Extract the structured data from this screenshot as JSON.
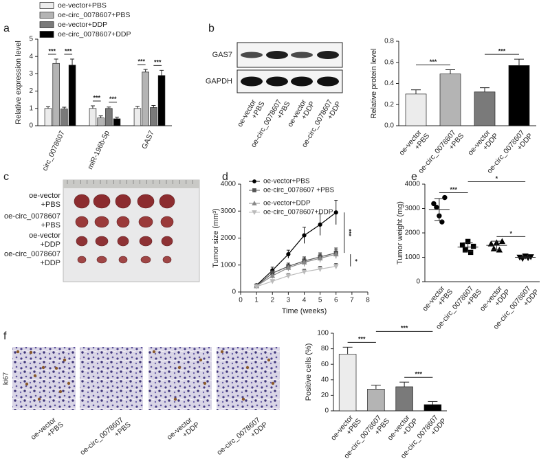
{
  "panels": [
    "a",
    "b",
    "c",
    "d",
    "e",
    "f"
  ],
  "blot": {
    "rows": [
      "GAS7",
      "GAPDH"
    ],
    "lanes": [
      [
        "oe-vector",
        "+PBS"
      ],
      [
        "oe-circ_0078607",
        "+PBS"
      ],
      [
        "oe-vector",
        "+DDP"
      ],
      [
        "oe-circ_0078607",
        "+DDP"
      ]
    ]
  },
  "photo": {
    "rows": [
      [
        "oe-vector",
        "+PBS"
      ],
      [
        "oe-circ_0078607",
        "+PBS"
      ],
      [
        "oe-vector",
        "+DDP"
      ],
      [
        "oe-circ_0078607",
        "+DDP"
      ]
    ]
  },
  "ihc": {
    "stain": "ki67",
    "columns": [
      [
        "oe-vector",
        "+PBS"
      ],
      [
        "oe-circ_0078607",
        "+PBS"
      ],
      [
        "oe-vector",
        "+DDP"
      ],
      [
        "oe-circ_0078607",
        "+DDP"
      ]
    ]
  },
  "chart_data": [
    {
      "type": "grouped_bar",
      "ylabel": "Relative expression level",
      "categories": [
        "circ_0078607",
        "miR-196b-5p",
        "GAS7"
      ],
      "series": [
        {
          "name": "oe-vector+PBS",
          "color": "#ececec",
          "values": [
            1.0,
            1.0,
            1.0
          ],
          "errors": [
            0.1,
            0.15,
            0.12
          ]
        },
        {
          "name": "oe-circ_0078607+PBS",
          "color": "#b4b4b4",
          "values": [
            3.6,
            0.45,
            3.1
          ],
          "errors": [
            0.25,
            0.12,
            0.15
          ]
        },
        {
          "name": "oe-vector+DDP",
          "color": "#7a7a7a",
          "values": [
            0.97,
            1.0,
            1.05
          ],
          "errors": [
            0.1,
            0.08,
            0.12
          ]
        },
        {
          "name": "oe-circ_0078607+DDP",
          "color": "#000000",
          "values": [
            3.5,
            0.4,
            2.9
          ],
          "errors": [
            0.35,
            0.1,
            0.3
          ]
        }
      ],
      "ylim": [
        0,
        5
      ],
      "yticks": [
        0,
        1,
        2,
        3,
        4,
        5
      ],
      "significance": [
        {
          "label": "***",
          "group": 0,
          "between": [
            0,
            1
          ]
        },
        {
          "label": "***",
          "group": 0,
          "between": [
            2,
            3
          ]
        },
        {
          "label": "***",
          "group": 1,
          "between": [
            0,
            1
          ]
        },
        {
          "label": "***",
          "group": 1,
          "between": [
            2,
            3
          ]
        },
        {
          "label": "***",
          "group": 2,
          "between": [
            0,
            1
          ]
        },
        {
          "label": "***",
          "group": 2,
          "between": [
            2,
            3
          ]
        }
      ]
    },
    {
      "type": "bar",
      "ylabel": "Relative protein level",
      "categories": [
        [
          "oe-vector",
          "+PBS"
        ],
        [
          "oe-circ_0078607",
          "+PBS"
        ],
        [
          "oe-vector",
          "+DDP"
        ],
        [
          "oe-circ_0078607",
          "+DDP"
        ]
      ],
      "values": [
        0.3,
        0.49,
        0.32,
        0.57
      ],
      "errors": [
        0.04,
        0.04,
        0.04,
        0.06
      ],
      "colors": [
        "#ececec",
        "#b4b4b4",
        "#7a7a7a",
        "#000000"
      ],
      "ylim": [
        0,
        0.8
      ],
      "yticks": [
        {
          "value": 0,
          "label": "0.0"
        },
        0.2,
        0.4,
        0.6,
        0.8
      ],
      "significance": [
        {
          "label": "***",
          "between": [
            0,
            1
          ]
        },
        {
          "label": "***",
          "between": [
            2,
            3
          ]
        }
      ]
    },
    {
      "type": "line",
      "ylabel": "Tumor size (mm³)",
      "xlabel": "Time (weeks)",
      "x": [
        1,
        2,
        3,
        4,
        5,
        6
      ],
      "series": [
        {
          "name": "oe-vector+PBS",
          "color": "#000000",
          "marker": "circle",
          "values": [
            250,
            800,
            1400,
            2100,
            2500,
            2950
          ],
          "errors": [
            40,
            120,
            150,
            300,
            400,
            450
          ]
        },
        {
          "name": "oe-circ_0078607 +PBS",
          "color": "#555555",
          "marker": "square",
          "values": [
            230,
            700,
            950,
            1150,
            1300,
            1450
          ],
          "errors": [
            40,
            100,
            120,
            150,
            150,
            180
          ]
        },
        {
          "name": "oe-vector+DDP",
          "color": "#888888",
          "marker": "triangle",
          "values": [
            220,
            600,
            900,
            1100,
            1250,
            1400
          ],
          "errors": [
            40,
            100,
            120,
            150,
            150,
            160
          ]
        },
        {
          "name": "oe-circ_0078607+DDP",
          "color": "#bbbbbb",
          "marker": "triangle-down",
          "values": [
            200,
            400,
            600,
            750,
            850,
            950
          ],
          "errors": [
            30,
            60,
            80,
            90,
            100,
            100
          ]
        }
      ],
      "xlim": [
        0,
        8
      ],
      "xticks": [
        0,
        1,
        2,
        3,
        4,
        5,
        6,
        7,
        8
      ],
      "ylim": [
        0,
        4000
      ],
      "yticks": [
        0,
        1000,
        2000,
        3000,
        4000
      ],
      "significance": [
        {
          "label": "***",
          "between": [
            0,
            1
          ]
        },
        {
          "label": "*",
          "between": [
            2,
            3
          ]
        }
      ]
    },
    {
      "type": "strip",
      "ylabel": "Tumor weight (mg)",
      "categories": [
        [
          "oe-vector",
          "+PBS"
        ],
        [
          "oe-circ_0078607",
          "+PBS"
        ],
        [
          "oe-vector",
          "+DDP"
        ],
        [
          "oe-circ_0078607",
          "+DDP"
        ]
      ],
      "markers": [
        "circle",
        "square",
        "triangle",
        "triangle-down"
      ],
      "points": [
        [
          3200,
          3050,
          2700,
          2450,
          3450
        ],
        [
          1500,
          1300,
          1650,
          1200,
          1450
        ],
        [
          1550,
          1350,
          1600,
          1300,
          1650
        ],
        [
          1000,
          950,
          1050,
          980,
          1020
        ]
      ],
      "means": [
        2960,
        1420,
        1490,
        1000
      ],
      "sd": [
        450,
        180,
        170,
        40
      ],
      "ylim": [
        0,
        4000
      ],
      "yticks": [
        0,
        1000,
        2000,
        3000,
        4000
      ],
      "significance": [
        {
          "label": "***",
          "between": [
            0,
            1
          ]
        },
        {
          "label": "*",
          "between": [
            1,
            3
          ]
        },
        {
          "label": "*",
          "between": [
            2,
            3
          ]
        }
      ]
    },
    {
      "type": "bar",
      "ylabel": "Positive cells (%)",
      "categories": [
        [
          "oe-vector",
          "+PBS"
        ],
        [
          "oe-circ_0078607",
          "+PBS"
        ],
        [
          "oe-vector",
          "+DDP"
        ],
        [
          "oe-circ_0078607",
          "+DDP"
        ]
      ],
      "values": [
        73,
        28,
        31,
        8
      ],
      "errors": [
        9,
        5,
        6,
        4
      ],
      "colors": [
        "#ececec",
        "#b4b4b4",
        "#7a7a7a",
        "#000000"
      ],
      "ylim": [
        0,
        100
      ],
      "yticks": [
        0,
        20,
        40,
        60,
        80,
        100
      ],
      "significance": [
        {
          "label": "***",
          "between": [
            0,
            1
          ]
        },
        {
          "label": "***",
          "between": [
            1,
            3
          ]
        },
        {
          "label": "***",
          "between": [
            2,
            3
          ]
        }
      ]
    }
  ]
}
